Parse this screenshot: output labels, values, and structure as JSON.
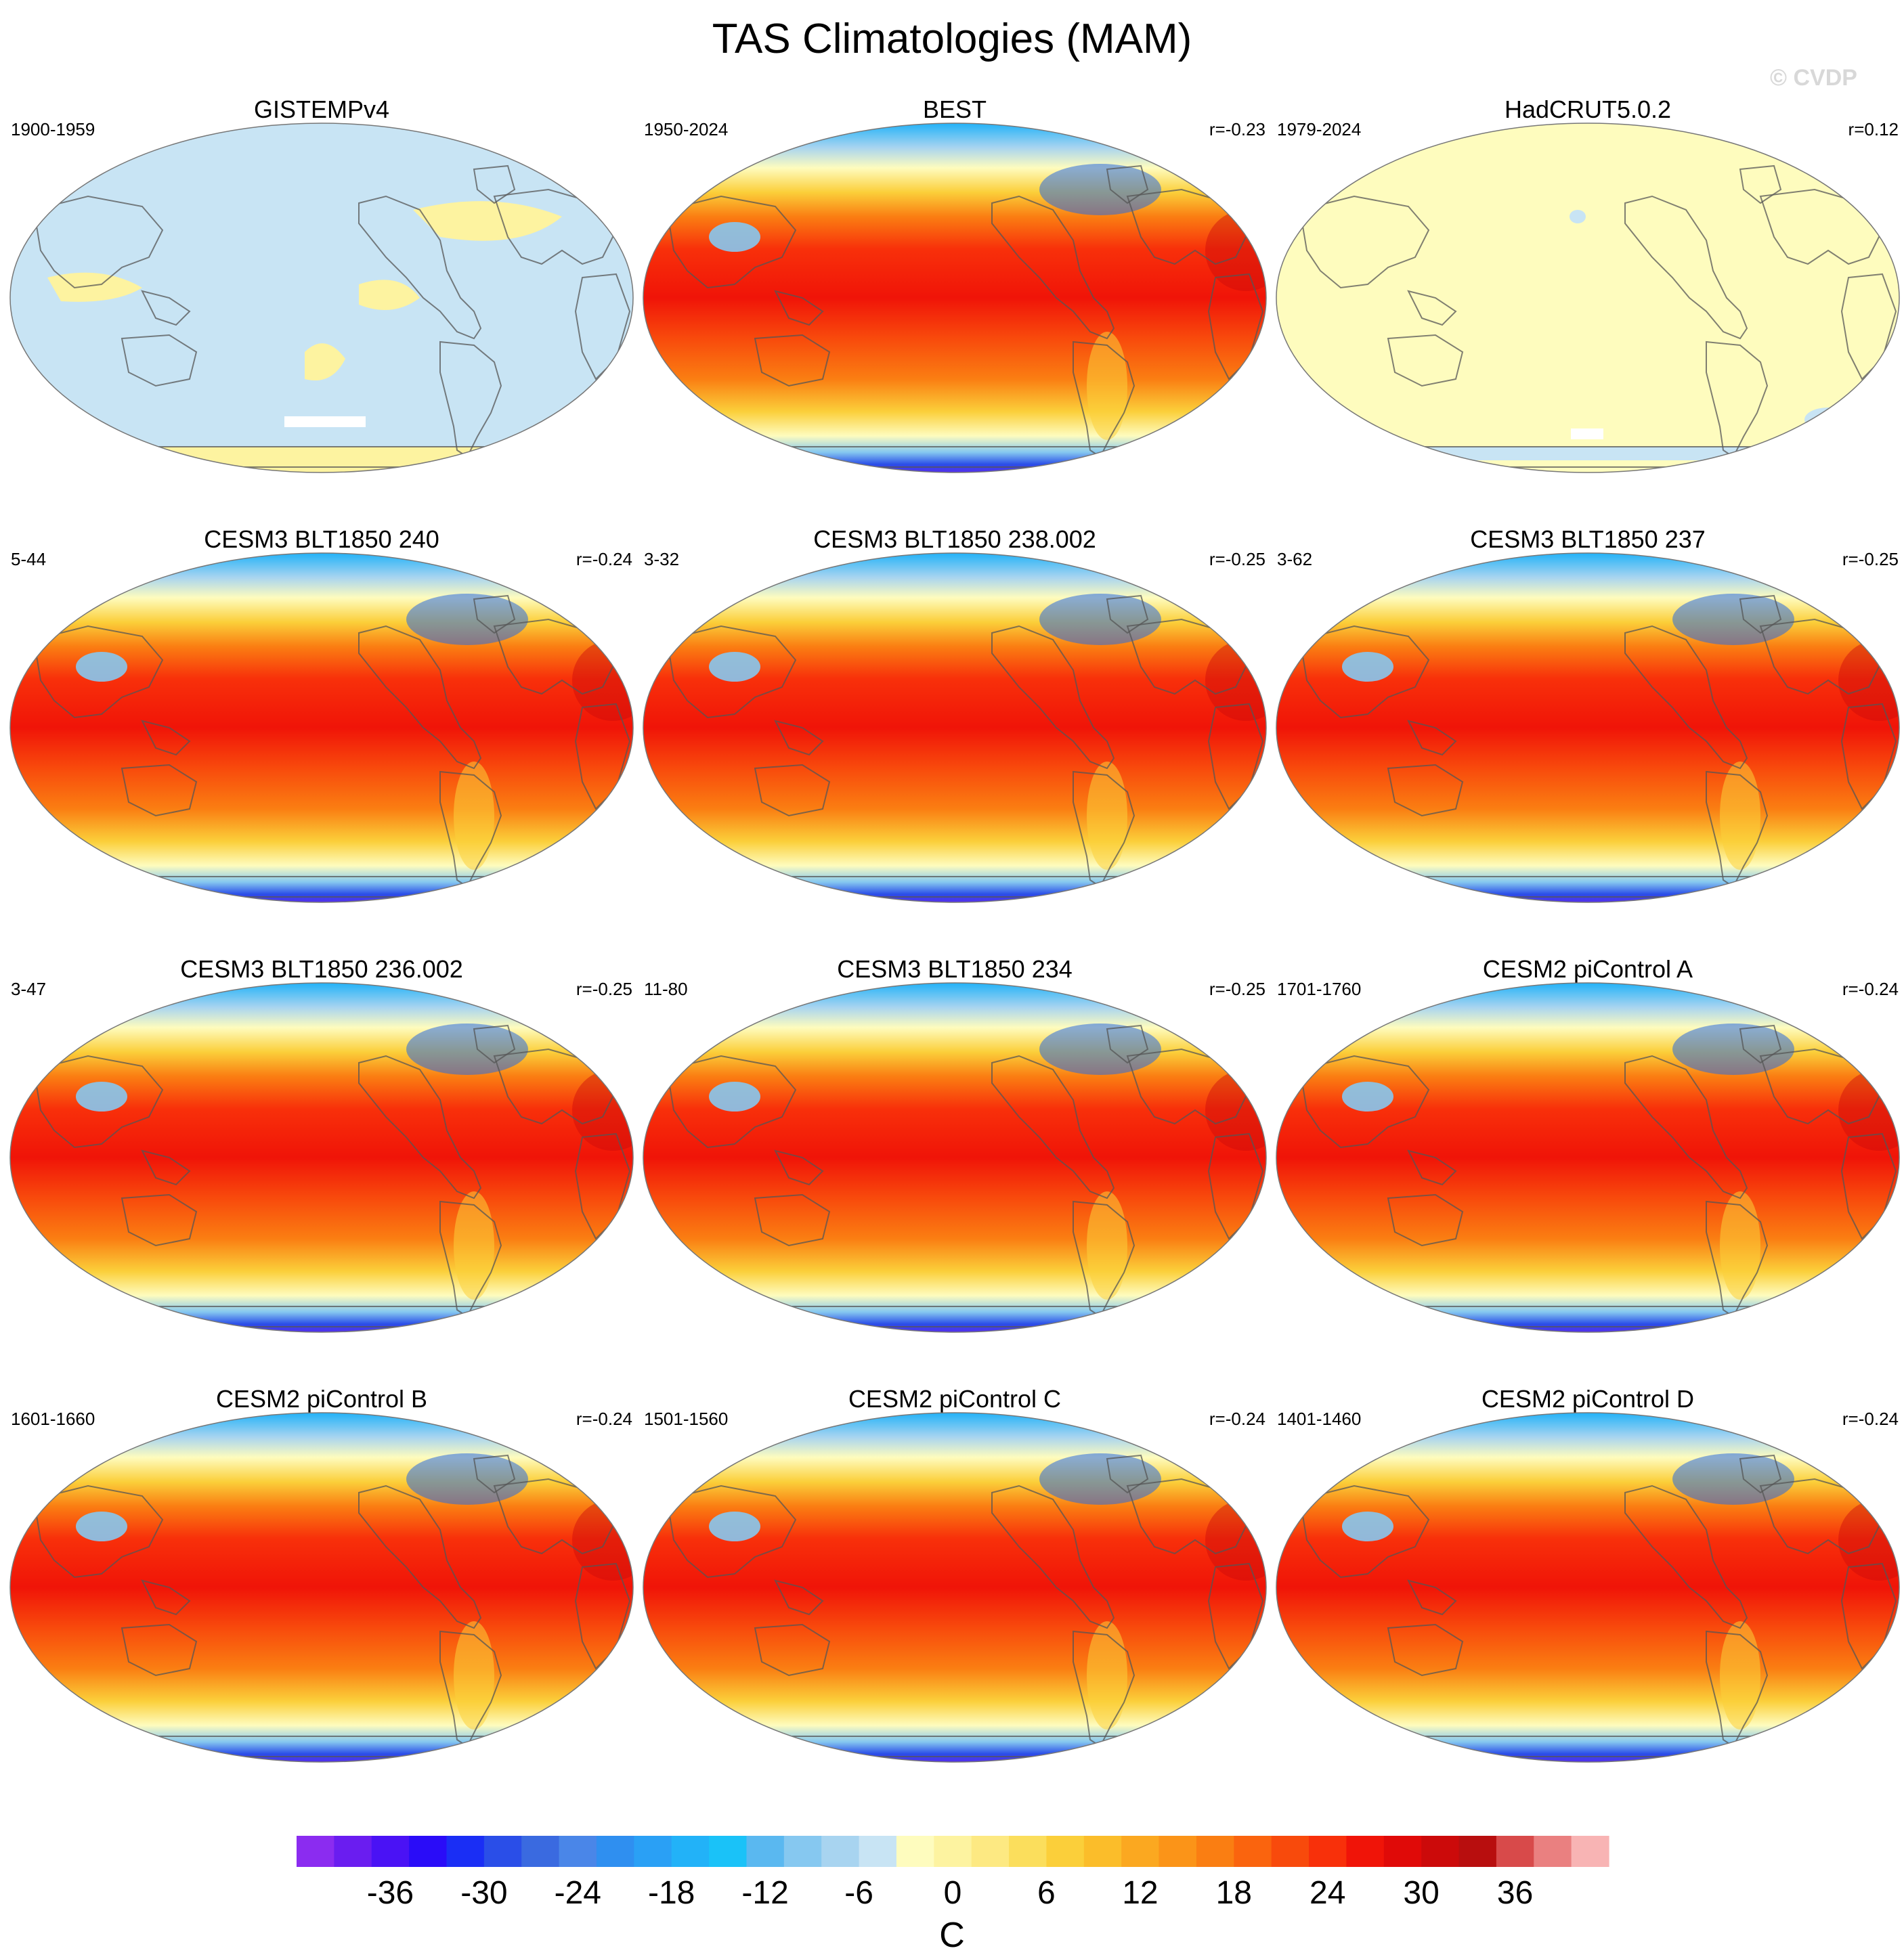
{
  "title": "TAS Climatologies (MAM)",
  "watermark": "© CVDP",
  "panels": [
    {
      "title": "GISTEMPv4",
      "years": "1900-1959",
      "r": "",
      "style": "obs-flat-blue"
    },
    {
      "title": "BEST",
      "years": "1950-2024",
      "r": "r=-0.23",
      "style": "climatology"
    },
    {
      "title": "HadCRUT5.0.2",
      "years": "1979-2024",
      "r": "r=0.12",
      "style": "obs-flat-yellow"
    },
    {
      "title": "CESM3 BLT1850 240",
      "years": "5-44",
      "r": "r=-0.24",
      "style": "climatology"
    },
    {
      "title": "CESM3 BLT1850 238.002",
      "years": "3-32",
      "r": "r=-0.25",
      "style": "climatology"
    },
    {
      "title": "CESM3 BLT1850 237",
      "years": "3-62",
      "r": "r=-0.25",
      "style": "climatology"
    },
    {
      "title": "CESM3 BLT1850 236.002",
      "years": "3-47",
      "r": "r=-0.25",
      "style": "climatology"
    },
    {
      "title": "CESM3 BLT1850 234",
      "years": "11-80",
      "r": "r=-0.25",
      "style": "climatology"
    },
    {
      "title": "CESM2 piControl A",
      "years": "1701-1760",
      "r": "r=-0.24",
      "style": "climatology"
    },
    {
      "title": "CESM2 piControl B",
      "years": "1601-1660",
      "r": "r=-0.24",
      "style": "climatology"
    },
    {
      "title": "CESM2 piControl C",
      "years": "1501-1560",
      "r": "r=-0.24",
      "style": "climatology"
    },
    {
      "title": "CESM2 piControl D",
      "years": "1401-1460",
      "r": "r=-0.24",
      "style": "climatology"
    }
  ],
  "colorbar": {
    "unit": "C",
    "min": -42,
    "max": 42,
    "step": 3,
    "tick_labels": [
      "-36",
      "-30",
      "-24",
      "-18",
      "-12",
      "-6",
      "0",
      "6",
      "12",
      "18",
      "24",
      "30",
      "36"
    ],
    "colors": [
      "#8b2cf0",
      "#6a1df0",
      "#4a12f5",
      "#2a0cf8",
      "#1a2ef5",
      "#2a4ee8",
      "#3a6ae0",
      "#4a86e8",
      "#2f8ff0",
      "#2aa0f5",
      "#22b2f8",
      "#1ac2f8",
      "#5ab8f0",
      "#86c8f0",
      "#a8d4f0",
      "#c8e4f4",
      "#fefcbe",
      "#fdf3a0",
      "#fde982",
      "#fbde5c",
      "#fbcf3a",
      "#fbbd2a",
      "#fba820",
      "#fb9418",
      "#fa7e12",
      "#fa640e",
      "#f84a0c",
      "#f8300a",
      "#f01408",
      "#e00a08",
      "#cc0a0a",
      "#b80e0e",
      "#d84a4a",
      "#ea8080",
      "#f8b4b4"
    ]
  }
}
